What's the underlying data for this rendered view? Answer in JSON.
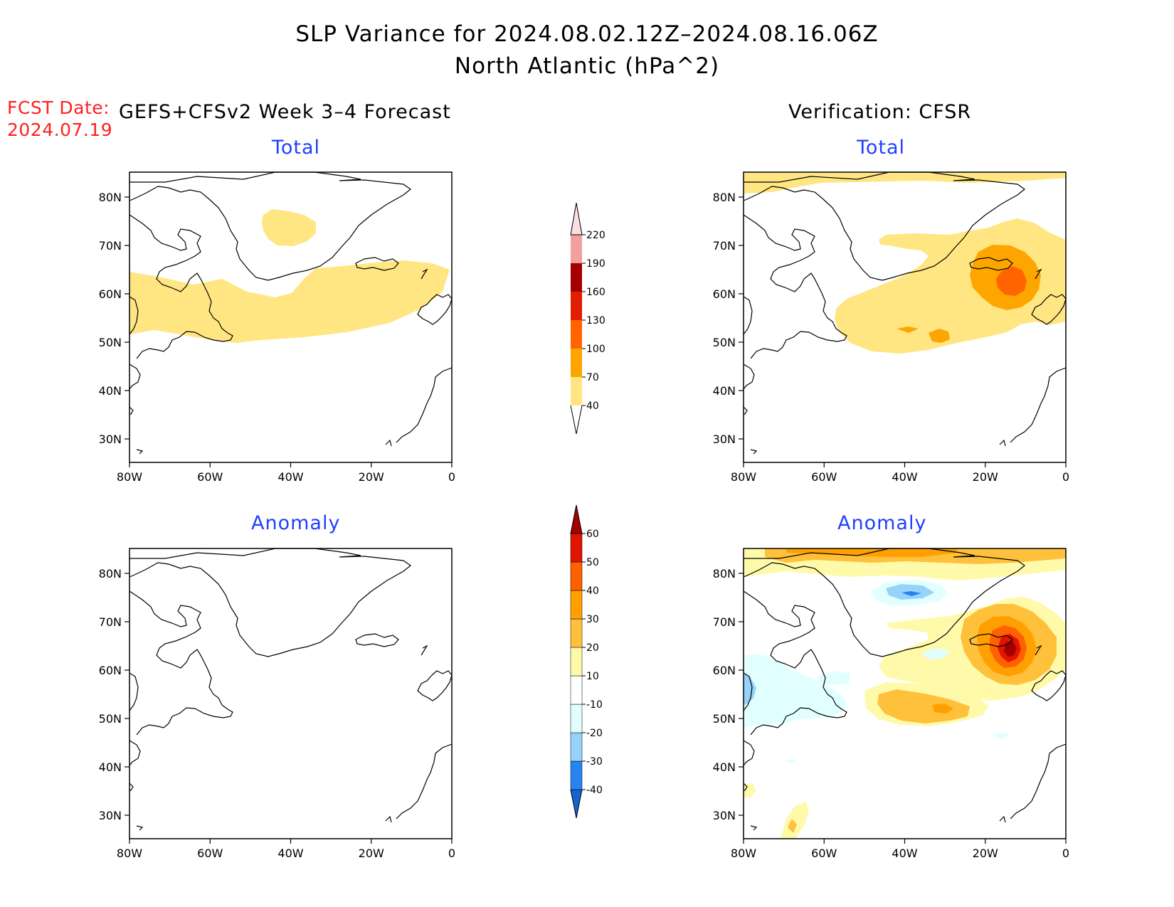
{
  "title": {
    "line1": "SLP Variance for 2024.08.02.12Z–2024.08.16.06Z",
    "line2": "North Atlantic (hPa^2)"
  },
  "forecast_date": {
    "label": "FCST Date:",
    "value": "2024.07.19"
  },
  "columns": {
    "left": "GEFS+CFSv2 Week 3–4 Forecast",
    "right": "Verification: CFSR"
  },
  "panels": {
    "top_left": "Total",
    "top_right": "Total",
    "bottom_left": "Anomaly",
    "bottom_right": "Anomaly"
  },
  "axes": {
    "lat_ticks": [
      "30N",
      "40N",
      "50N",
      "60N",
      "70N",
      "80N"
    ],
    "lon_ticks": [
      "80W",
      "60W",
      "40W",
      "20W",
      "0"
    ]
  },
  "colorbars": {
    "total": {
      "labels": [
        "40",
        "70",
        "100",
        "130",
        "160",
        "190",
        "220"
      ],
      "colors": [
        "#ffe682",
        "#ffa500",
        "#ff6400",
        "#e11e00",
        "#a50000",
        "#f0a0a0",
        "#fddede"
      ]
    },
    "anomaly": {
      "labels": [
        "-40",
        "-30",
        "-20",
        "-10",
        "10",
        "20",
        "30",
        "40",
        "50",
        "60"
      ],
      "colors": [
        "#1464d2",
        "#2882f0",
        "#96d2fa",
        "#e1ffff",
        "#ffffff",
        "#fffaaa",
        "#ffc03c",
        "#ffa000",
        "#ff6000",
        "#e11400",
        "#a50000"
      ]
    }
  }
}
